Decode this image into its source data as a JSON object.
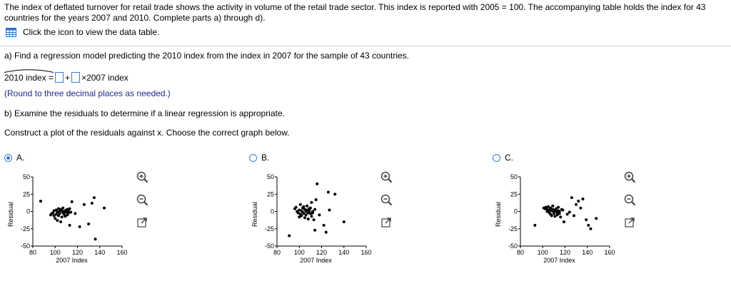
{
  "intro": "The index of deflated turnover for retail trade shows the activity in volume of the retail trade sector. This index is reported with 2005 = 100. The accompanying table holds the index for 43 countries for the years 2007 and 2010. Complete parts a) through d).",
  "data_link": {
    "label": "Click the icon to view the data table.",
    "icon": "table-grid-icon"
  },
  "part_a": {
    "question": "a) Find a regression model predicting the 2010 index from the index in 2007 for the sample of 43 countries.",
    "lhs": "2010 index =",
    "plus": "+",
    "times": "×2007 index",
    "intercept_value": "",
    "slope_value": "",
    "hint": "(Round to three decimal places as needed.)"
  },
  "part_b": {
    "question": "b) Examine the residuals to determine if a linear regression is appropriate.",
    "instruction": "Construct a plot of the residuals against x. Choose the correct graph below."
  },
  "colors": {
    "accent": "#3a7bd5",
    "hint": "#1c2a8c"
  },
  "options": [
    {
      "label": "A.",
      "selected": true,
      "chart_data": {
        "type": "scatter",
        "xlabel": "2007 Index",
        "ylabel": "Residual",
        "xlim": [
          80,
          160
        ],
        "ylim": [
          -50,
          50
        ],
        "xticks": [
          "80",
          "100",
          "120",
          "140",
          "160"
        ],
        "yticks": [
          "50",
          "25",
          "0",
          "-25",
          "-50"
        ],
        "points": [
          [
            87,
            15
          ],
          [
            96,
            -5
          ],
          [
            97,
            -3
          ],
          [
            98,
            -2
          ],
          [
            99,
            -6
          ],
          [
            99,
            1
          ],
          [
            100,
            -10
          ],
          [
            101,
            -4
          ],
          [
            101,
            2
          ],
          [
            102,
            -1
          ],
          [
            102,
            -13
          ],
          [
            103,
            -6
          ],
          [
            103,
            4
          ],
          [
            104,
            0
          ],
          [
            104,
            -3
          ],
          [
            105,
            3
          ],
          [
            105,
            -15
          ],
          [
            106,
            -8
          ],
          [
            106,
            1
          ],
          [
            107,
            -2
          ],
          [
            107,
            5
          ],
          [
            108,
            0
          ],
          [
            108,
            -4
          ],
          [
            109,
            1
          ],
          [
            109,
            -7
          ],
          [
            110,
            2
          ],
          [
            110,
            -1
          ],
          [
            111,
            -5
          ],
          [
            111,
            3
          ],
          [
            112,
            0
          ],
          [
            112,
            -2
          ],
          [
            113,
            -20
          ],
          [
            113,
            4
          ],
          [
            114,
            -1
          ],
          [
            115,
            14
          ],
          [
            118,
            -3
          ],
          [
            122,
            -22
          ],
          [
            126,
            10
          ],
          [
            130,
            -18
          ],
          [
            133,
            12
          ],
          [
            135,
            20
          ],
          [
            136,
            -40
          ],
          [
            144,
            5
          ]
        ]
      }
    },
    {
      "label": "B.",
      "selected": false,
      "chart_data": {
        "type": "scatter",
        "xlabel": "2007 Index",
        "ylabel": "Residual",
        "xlim": [
          80,
          160
        ],
        "ylim": [
          -50,
          50
        ],
        "xticks": [
          "80",
          "100",
          "120",
          "140",
          "160"
        ],
        "yticks": [
          "50",
          "25",
          "0",
          "-25",
          "-50"
        ],
        "points": [
          [
            91,
            -35
          ],
          [
            96,
            4
          ],
          [
            97,
            6
          ],
          [
            98,
            0
          ],
          [
            99,
            -2
          ],
          [
            100,
            2
          ],
          [
            100,
            -8
          ],
          [
            101,
            10
          ],
          [
            101,
            -4
          ],
          [
            102,
            1
          ],
          [
            102,
            -6
          ],
          [
            103,
            5
          ],
          [
            103,
            -1
          ],
          [
            104,
            7
          ],
          [
            104,
            -3
          ],
          [
            105,
            3
          ],
          [
            105,
            -9
          ],
          [
            106,
            0
          ],
          [
            106,
            -5
          ],
          [
            107,
            2
          ],
          [
            107,
            8
          ],
          [
            108,
            -2
          ],
          [
            108,
            -11
          ],
          [
            109,
            4
          ],
          [
            109,
            1
          ],
          [
            110,
            -3
          ],
          [
            110,
            5
          ],
          [
            111,
            13
          ],
          [
            111,
            -7
          ],
          [
            112,
            0
          ],
          [
            112,
            -2
          ],
          [
            113,
            -12
          ],
          [
            114,
            3
          ],
          [
            114,
            -27
          ],
          [
            115,
            17
          ],
          [
            116,
            40
          ],
          [
            118,
            -5
          ],
          [
            122,
            -20
          ],
          [
            124,
            -30
          ],
          [
            126,
            28
          ],
          [
            127,
            2
          ],
          [
            132,
            25
          ],
          [
            140,
            -15
          ]
        ]
      }
    },
    {
      "label": "C.",
      "selected": false,
      "chart_data": {
        "type": "scatter",
        "xlabel": "2007 Index",
        "ylabel": "Residual",
        "xlim": [
          80,
          160
        ],
        "ylim": [
          -50,
          50
        ],
        "xticks": [
          "80",
          "100",
          "120",
          "140",
          "160"
        ],
        "yticks": [
          "50",
          "25",
          "0",
          "-25",
          "-50"
        ],
        "points": [
          [
            93,
            -20
          ],
          [
            101,
            5
          ],
          [
            102,
            4
          ],
          [
            103,
            6
          ],
          [
            104,
            3
          ],
          [
            104,
            0
          ],
          [
            105,
            7
          ],
          [
            106,
            2
          ],
          [
            106,
            -2
          ],
          [
            107,
            5
          ],
          [
            107,
            -4
          ],
          [
            108,
            1
          ],
          [
            108,
            -6
          ],
          [
            109,
            3
          ],
          [
            109,
            8
          ],
          [
            110,
            -1
          ],
          [
            110,
            -3
          ],
          [
            111,
            2
          ],
          [
            111,
            -7
          ],
          [
            112,
            0
          ],
          [
            112,
            4
          ],
          [
            113,
            -5
          ],
          [
            113,
            -2
          ],
          [
            114,
            1
          ],
          [
            114,
            6
          ],
          [
            115,
            -3
          ],
          [
            115,
            0
          ],
          [
            116,
            -8
          ],
          [
            117,
            3
          ],
          [
            118,
            2
          ],
          [
            119,
            -15
          ],
          [
            122,
            -4
          ],
          [
            124,
            -1
          ],
          [
            126,
            20
          ],
          [
            128,
            -6
          ],
          [
            130,
            10
          ],
          [
            132,
            15
          ],
          [
            134,
            5
          ],
          [
            136,
            18
          ],
          [
            139,
            -12
          ],
          [
            141,
            -20
          ],
          [
            143,
            -25
          ],
          [
            148,
            -10
          ]
        ]
      }
    }
  ]
}
